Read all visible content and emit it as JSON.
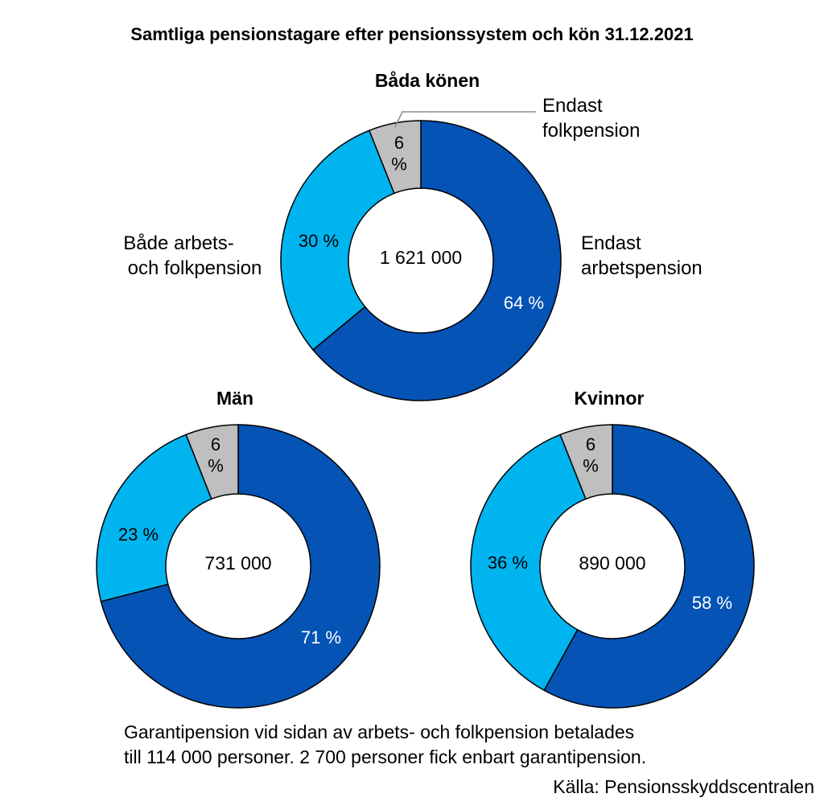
{
  "chart_data": {
    "type": "pie",
    "title": "Samtliga pensionstagare efter pensionssystem och kön 31.12.2021",
    "categories": [
      "Endast arbetspension",
      "Både arbets- och folkpension",
      "Endast folkpension"
    ],
    "category_label_lines": [
      [
        "Endast",
        "arbetspension"
      ],
      [
        "Både arbets-",
        "och folkpension"
      ],
      [
        "Endast",
        "folkpension"
      ]
    ],
    "colors": [
      "#0453b5",
      "#00b4f0",
      "#bfbfbf"
    ],
    "label_colors": [
      "#ffffff",
      "#000000",
      "#000000"
    ],
    "charts": [
      {
        "title": "Båda könen",
        "total": "1 621 000",
        "values": [
          64,
          30,
          6
        ],
        "value_labels": [
          "64 %",
          "30 %",
          "6 %"
        ]
      },
      {
        "title": "Män",
        "total": "731 000",
        "values": [
          71,
          23,
          6
        ],
        "value_labels": [
          "71 %",
          "23 %",
          "6 %"
        ]
      },
      {
        "title": "Kvinnor",
        "total": "890 000",
        "values": [
          58,
          36,
          6
        ],
        "value_labels": [
          "58 %",
          "36 %",
          "6 %"
        ]
      }
    ],
    "note_lines": [
      "Garantipension vid sidan av arbets- och folkpension betalades",
      "till 114 000 personer. 2 700 personer fick enbart garantipension."
    ],
    "source": "Källa: Pensionsskyddscentralen"
  }
}
